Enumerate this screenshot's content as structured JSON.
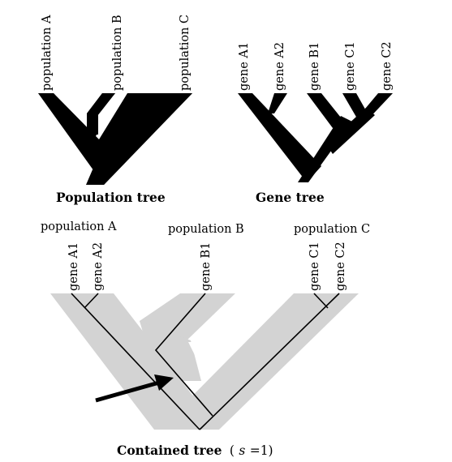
{
  "population_tree": {
    "leaves": [
      "population A",
      "population B",
      "population C"
    ],
    "caption": "Population tree"
  },
  "gene_tree": {
    "leaves": [
      "gene A1",
      "gene A2",
      "gene B1",
      "gene C1",
      "gene C2"
    ],
    "caption": "Gene tree"
  },
  "contained_tree": {
    "populations": [
      "population A",
      "population B",
      "population C"
    ],
    "genes": [
      "gene A1",
      "gene A2",
      "gene B1",
      "gene C1",
      "gene C2"
    ],
    "caption_main": "Contained tree",
    "caption_open": "(",
    "caption_var": "s",
    "caption_rest": " =1)"
  },
  "colors": {
    "ink": "#000000",
    "population_shading": "#d3d3d3"
  }
}
